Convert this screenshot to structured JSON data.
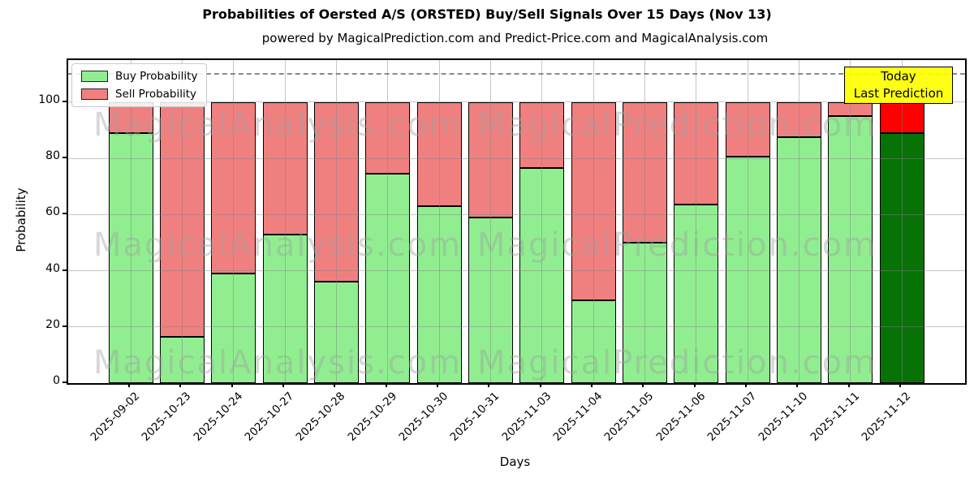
{
  "header": {
    "title": "Probabilities of Oersted A/S (ORSTED) Buy/Sell Signals Over 15 Days (Nov 13)",
    "subtitle": "powered by MagicalPrediction.com and Predict-Price.com and MagicalAnalysis.com"
  },
  "axes": {
    "xlabel": "Days",
    "ylabel": "Probability"
  },
  "legend": {
    "items": [
      {
        "label": "Buy Probability",
        "color": "#90ee90"
      },
      {
        "label": "Sell Probability",
        "color": "#f08080"
      }
    ]
  },
  "annotation": {
    "line1": "Today",
    "line2": "Last Prediction",
    "bg_color": "#ffff00"
  },
  "watermark": {
    "left_text": "MagicalAnalysis.com",
    "right_text": "MagicalPrediction.com"
  },
  "chart_data": {
    "type": "bar",
    "stacked": true,
    "title": "Probabilities of Oersted A/S (ORSTED) Buy/Sell Signals Over 15 Days (Nov 13)",
    "xlabel": "Days",
    "ylabel": "Probability",
    "categories": [
      "2025-09-02",
      "2025-10-23",
      "2025-10-24",
      "2025-10-27",
      "2025-10-28",
      "2025-10-29",
      "2025-10-30",
      "2025-10-31",
      "2025-11-03",
      "2025-11-04",
      "2025-11-05",
      "2025-11-06",
      "2025-11-07",
      "2025-11-10",
      "2025-11-11",
      "2025-11-12"
    ],
    "series": [
      {
        "name": "Buy Probability",
        "color": "#90ee90",
        "values": [
          89,
          16.5,
          39,
          53,
          36,
          74.5,
          63,
          59,
          76.5,
          29.5,
          50,
          63.5,
          80.5,
          87.5,
          95,
          89
        ]
      },
      {
        "name": "Sell Probability",
        "color": "#f08080",
        "values": [
          11,
          83.5,
          61,
          47,
          64,
          25.5,
          37,
          41,
          23.5,
          70.5,
          50,
          36.5,
          19.5,
          12.5,
          5,
          11
        ]
      }
    ],
    "today_index": 15,
    "today_colors": {
      "buy": "#077307",
      "sell": "#ff0000"
    },
    "bar_edge_color": "#000000",
    "ylim": [
      0,
      115
    ],
    "yticks": [
      0,
      20,
      40,
      60,
      80,
      100
    ],
    "threshold_line": 110,
    "grid": true,
    "legend_position": "upper left"
  }
}
